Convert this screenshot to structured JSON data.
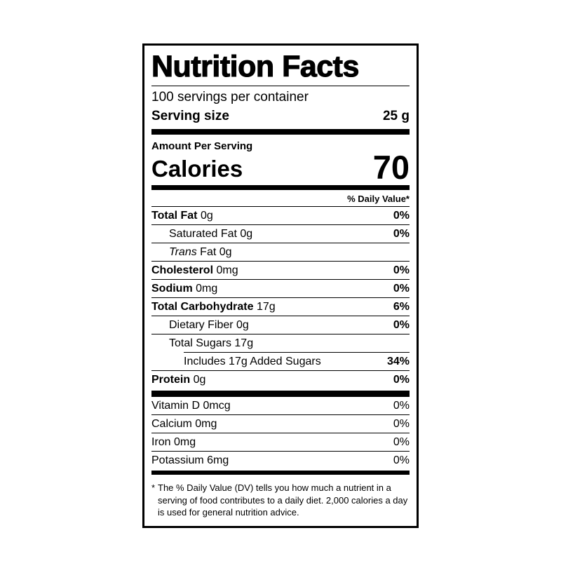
{
  "label": {
    "title": "Nutrition Facts",
    "servings_per_container": "100 servings per container",
    "serving_size_label": "Serving size",
    "serving_size_value": "25 g",
    "amount_per_serving": "Amount Per Serving",
    "calories_label": "Calories",
    "calories_value": "70",
    "daily_value_header": "% Daily Value*",
    "rows": [
      {
        "name": "Total Fat",
        "amount": "0g",
        "dv": "0%"
      },
      {
        "name": "Saturated Fat",
        "amount": "0g",
        "dv": "0%"
      },
      {
        "italic": "Trans",
        "name": "Fat",
        "amount": "0g",
        "dv": ""
      },
      {
        "name": "Cholesterol",
        "amount": "0mg",
        "dv": "0%"
      },
      {
        "name": "Sodium",
        "amount": "0mg",
        "dv": "0%"
      },
      {
        "name": "Total Carbohydrate",
        "amount": "17g",
        "dv": "6%"
      },
      {
        "name": "Dietary Fiber",
        "amount": "0g",
        "dv": "0%"
      },
      {
        "name": "Total Sugars",
        "amount": "17g",
        "dv": ""
      },
      {
        "name": "Includes 17g Added Sugars",
        "amount": "",
        "dv": "34%"
      },
      {
        "name": "Protein",
        "amount": "0g",
        "dv": "0%"
      }
    ],
    "micro_rows": [
      {
        "name": "Vitamin D",
        "amount": "0mcg",
        "dv": "0%"
      },
      {
        "name": "Calcium",
        "amount": "0mg",
        "dv": "0%"
      },
      {
        "name": "Iron",
        "amount": "0mg",
        "dv": "0%"
      },
      {
        "name": "Potassium",
        "amount": "6mg",
        "dv": "0%"
      }
    ],
    "footnote_marker": "*",
    "footnote_text": "The % Daily Value (DV) tells you how much a nutrient in a serving of food contributes to a daily diet. 2,000 calories a day is used for general nutrition advice.",
    "colors": {
      "ink": "#000000",
      "background": "#ffffff"
    }
  }
}
